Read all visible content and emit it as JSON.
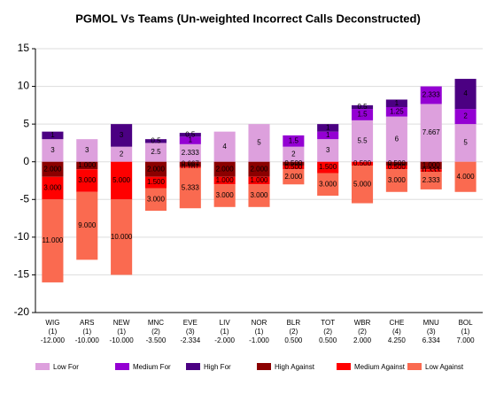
{
  "chart_data": {
    "type": "bar",
    "stacked": true,
    "title": "PGMOL Vs Teams (Un-weighted Incorrect Calls Deconstructed)",
    "categories": [
      [
        "WIG",
        "(1)",
        "-12.000"
      ],
      [
        "ARS",
        "(1)",
        "-10.000"
      ],
      [
        "NEW",
        "(1)",
        "-10.000"
      ],
      [
        "MNC",
        "(2)",
        "-3.500"
      ],
      [
        "EVE",
        "(3)",
        "-2.334"
      ],
      [
        "LIV",
        "(1)",
        "-2.000"
      ],
      [
        "NOR",
        "(1)",
        "-1.000"
      ],
      [
        "BLR",
        "(2)",
        "0.500"
      ],
      [
        "TOT",
        "(2)",
        "0.500"
      ],
      [
        "WBR",
        "(2)",
        "2.000"
      ],
      [
        "CHE",
        "(4)",
        "4.250"
      ],
      [
        "MNU",
        "(3)",
        "6.334"
      ],
      [
        "BOL",
        "(1)",
        "7.000"
      ]
    ],
    "ylim": [
      -20,
      15
    ],
    "yticks": [
      -20,
      -15,
      -10,
      -5,
      0,
      5,
      10,
      15
    ],
    "grid": true,
    "series": [
      {
        "name": "Low For",
        "color": "#dda0dd",
        "values": [
          3,
          3,
          2,
          2.5,
          2.333,
          4,
          5,
          2,
          3,
          5.5,
          6,
          7.667,
          5
        ]
      },
      {
        "name": "Medium For",
        "color": "#9400d3",
        "values": [
          0,
          0,
          0,
          0,
          1,
          0,
          0,
          1.5,
          1,
          1.5,
          1.25,
          2.333,
          2
        ]
      },
      {
        "name": "High For",
        "color": "#4b0082",
        "values": [
          1,
          0,
          3,
          0.5,
          0.5,
          0,
          0,
          0,
          1,
          0.5,
          1,
          0,
          4
        ]
      },
      {
        "name": "High Against",
        "color": "#8b0000",
        "values": [
          -2,
          -1,
          0,
          -2,
          -0.667,
          -2,
          -2,
          -0.5,
          0,
          0,
          -0.5,
          -1,
          0
        ],
        "value_labels": [
          "2.000",
          "1.000",
          null,
          "2.000",
          "0.667",
          "2.000",
          "2.000",
          "0.500",
          null,
          null,
          "0.500",
          "1.000",
          null
        ]
      },
      {
        "name": "Medium Against",
        "color": "#ff0000",
        "values": [
          -3,
          -3,
          -5,
          -1.5,
          -0.167,
          -1,
          -1,
          -0.5,
          -1.5,
          -0.5,
          -0.5,
          -0.333,
          0
        ],
        "value_labels": [
          "3.000",
          "3.000",
          "5.000",
          "1.500",
          "0.167",
          "1.000",
          "1.000",
          "0.500",
          "1.500",
          "0.500",
          "0.500",
          "0.333",
          null
        ]
      },
      {
        "name": "Low Against",
        "color": "#fa6a50",
        "values": [
          -11,
          -9,
          -10,
          -3,
          -5.333,
          -3,
          -3,
          -2,
          -3,
          -5,
          -3,
          -2.333,
          -4
        ],
        "value_labels": [
          "11.000",
          "9.000",
          "10.000",
          "3.000",
          "5.333",
          "3.000",
          "3.000",
          "2.000",
          "3.000",
          "5.000",
          "3.000",
          "2.333",
          "4.000"
        ]
      }
    ]
  }
}
